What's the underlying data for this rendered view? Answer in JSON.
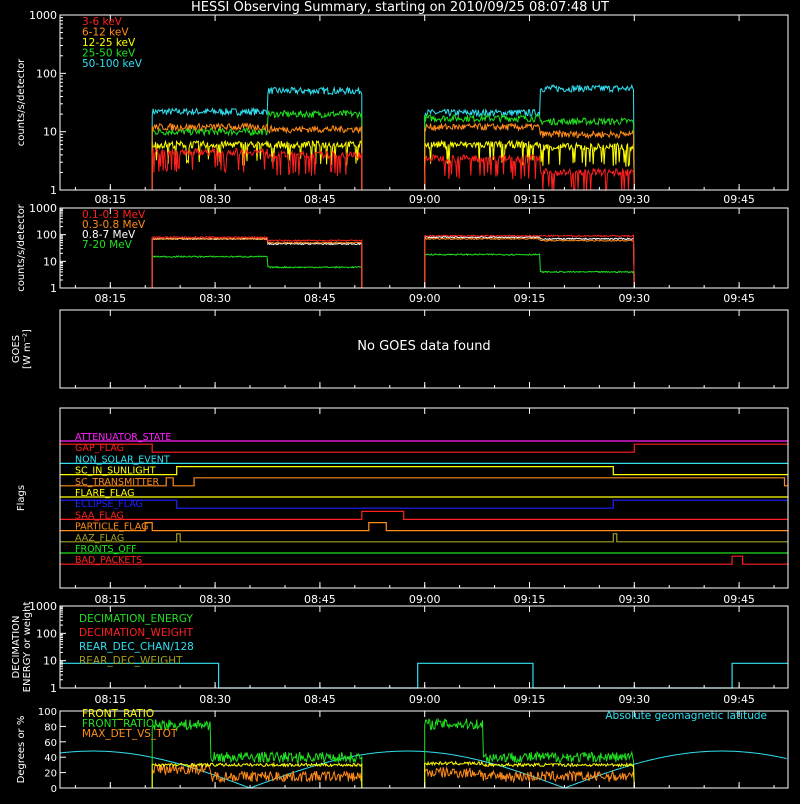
{
  "title": "HESSI Observing Summary, starting on 2010/09/25 08:07:48 UT",
  "x_ticks": [
    "08:15",
    "08:30",
    "08:45",
    "09:00",
    "09:15",
    "09:30",
    "09:45"
  ],
  "x_tick_minutes": [
    15,
    30,
    45,
    60,
    75,
    90,
    105
  ],
  "x_range_minutes": [
    7.8,
    112
  ],
  "colors": {
    "red": "#ff2020",
    "orange": "#ff8c1a",
    "yellow": "#ffff00",
    "green": "#20e020",
    "cyan": "#30e0f0",
    "magenta": "#ff20ff",
    "blue": "#2020ff",
    "olive": "#a0a020",
    "white": "#ffffff"
  },
  "chart_data": [
    {
      "type": "line",
      "panel": "low-energy",
      "ylabel": "counts/s/detector",
      "yscale": "log",
      "ylim": [
        1,
        1000
      ],
      "yticks": [
        "1",
        "10",
        "100",
        "1000"
      ],
      "segments_minutes": [
        [
          21,
          51
        ],
        [
          60,
          90
        ]
      ],
      "series": [
        {
          "name": "3-6 keV",
          "color": "red",
          "levels": [
            4.5,
            4.0,
            3.5,
            2.0
          ]
        },
        {
          "name": "6-12 keV",
          "color": "orange",
          "levels": [
            12,
            11,
            12,
            9
          ]
        },
        {
          "name": "12-25 keV",
          "color": "yellow",
          "levels": [
            6,
            6,
            6,
            5.5
          ]
        },
        {
          "name": "25-50 keV",
          "color": "green",
          "levels": [
            10,
            20,
            17,
            15
          ]
        },
        {
          "name": "50-100 keV",
          "color": "cyan",
          "levels": [
            22,
            50,
            21,
            55
          ]
        }
      ]
    },
    {
      "type": "line",
      "panel": "high-energy",
      "ylabel": "counts/s/detector",
      "yscale": "log",
      "ylim": [
        1,
        1000
      ],
      "yticks": [
        "1",
        "10",
        "100",
        "1000"
      ],
      "segments_minutes": [
        [
          21,
          51
        ],
        [
          60,
          90
        ]
      ],
      "series": [
        {
          "name": "0.1-0.3 MeV",
          "color": "red",
          "levels": [
            80,
            60,
            90,
            90
          ]
        },
        {
          "name": "0.3-0.8 MeV",
          "color": "orange",
          "levels": [
            70,
            50,
            70,
            60
          ]
        },
        {
          "name": "0.8-7 MeV",
          "color": "white",
          "levels": [
            70,
            45,
            80,
            70
          ]
        },
        {
          "name": "7-20 MeV",
          "color": "green",
          "levels": [
            15,
            6,
            18,
            4
          ]
        }
      ]
    },
    {
      "type": "line",
      "panel": "goes",
      "ylabel": "GOES [W m⁻²]",
      "message": "No GOES data found",
      "series": []
    },
    {
      "type": "line",
      "panel": "flags",
      "ylabel": "Flags",
      "series": [
        {
          "name": "ATTENUATOR_STATE",
          "color": "magenta",
          "steps": [
            [
              7.8,
              0
            ]
          ]
        },
        {
          "name": "GAP_FLAG",
          "color": "red",
          "steps": [
            [
              7.8,
              1
            ],
            [
              21,
              0
            ],
            [
              90,
              1
            ]
          ]
        },
        {
          "name": "NON_SOLAR_EVENT",
          "color": "cyan",
          "steps": [
            [
              7.8,
              0
            ]
          ]
        },
        {
          "name": "SC_IN_SUNLIGHT",
          "color": "yellow",
          "steps": [
            [
              7.8,
              0
            ],
            [
              24.5,
              1
            ],
            [
              87,
              0
            ]
          ]
        },
        {
          "name": "SC_TRANSMITTER",
          "color": "orange",
          "steps": [
            [
              7.8,
              0
            ],
            [
              23,
              1
            ],
            [
              24,
              0
            ],
            [
              27,
              1
            ],
            [
              111.5,
              0
            ]
          ]
        },
        {
          "name": "FLARE_FLAG",
          "color": "yellow",
          "steps": [
            [
              7.8,
              0
            ]
          ]
        },
        {
          "name": "ECLIPSE_FLAG",
          "color": "blue",
          "steps": [
            [
              7.8,
              1
            ],
            [
              24.5,
              0
            ],
            [
              87,
              1
            ]
          ]
        },
        {
          "name": "SAA_FLAG",
          "color": "red",
          "steps": [
            [
              7.8,
              0
            ],
            [
              51,
              1
            ],
            [
              57,
              0
            ]
          ]
        },
        {
          "name": "PARTICLE_FLAG",
          "color": "orange",
          "steps": [
            [
              7.8,
              0
            ],
            [
              20,
              1
            ],
            [
              21,
              0
            ],
            [
              52,
              1
            ],
            [
              54.5,
              0
            ]
          ]
        },
        {
          "name": "AAZ_FLAG",
          "color": "olive",
          "steps": [
            [
              7.8,
              0
            ],
            [
              24.5,
              1
            ],
            [
              25,
              0
            ],
            [
              87,
              1
            ],
            [
              87.5,
              0
            ]
          ]
        },
        {
          "name": "FRONTS_OFF",
          "color": "green",
          "steps": [
            [
              7.8,
              0
            ]
          ]
        },
        {
          "name": "BAD_PACKETS",
          "color": "red",
          "steps": [
            [
              7.8,
              0
            ],
            [
              104,
              1
            ],
            [
              105.5,
              0
            ]
          ]
        }
      ]
    },
    {
      "type": "line",
      "panel": "decimation",
      "ylabel": "DECIMATION ENERGY or weight",
      "yscale": "log",
      "ylim": [
        1,
        1000
      ],
      "yticks": [
        "1",
        "10",
        "100",
        "1000"
      ],
      "series": [
        {
          "name": "DECIMATION_ENERGY",
          "color": "green"
        },
        {
          "name": "DECIMATION_WEIGHT",
          "color": "red"
        },
        {
          "name": "REAR_DEC_CHAN/128",
          "color": "cyan",
          "steps": [
            [
              7.8,
              8
            ],
            [
              30.5,
              1
            ],
            [
              59,
              8
            ],
            [
              75.5,
              1
            ],
            [
              104,
              8
            ]
          ]
        },
        {
          "name": "REAR_DEC_WEIGHT",
          "color": "olive"
        }
      ]
    },
    {
      "type": "line",
      "panel": "ratios",
      "ylabel": "Degrees or %",
      "ylim": [
        0,
        100
      ],
      "yticks": [
        "0",
        "20",
        "40",
        "60",
        "80",
        "100"
      ],
      "segments_minutes": [
        [
          21,
          51
        ],
        [
          60,
          90
        ]
      ],
      "annotation": "Absolute geomagnetic latitude",
      "series": [
        {
          "name": "FRONT_RATIO",
          "color": "yellow",
          "levels": [
            30,
            30,
            32,
            30
          ]
        },
        {
          "name": "FRONT_RATIO",
          "color": "green",
          "levels": [
            82,
            40,
            83,
            40
          ]
        },
        {
          "name": "MAX_DET_VS_TOT",
          "color": "orange",
          "levels": [
            25,
            15,
            20,
            15
          ]
        },
        {
          "name": "Absolute geomagnetic latitude",
          "color": "cyan",
          "wave": {
            "amplitude": 48,
            "min_at": [
              35,
              79
            ],
            "max_at": [
              13,
              58,
              102
            ],
            "period": 45
          }
        }
      ]
    }
  ]
}
